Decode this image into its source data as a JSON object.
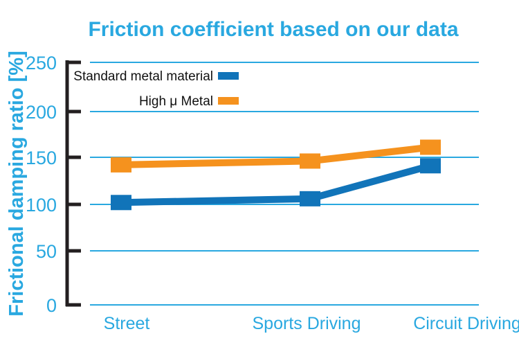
{
  "chart_data": {
    "type": "line",
    "title": "Friction coefficient based on our data",
    "ylabel": "Frictional damping ratio [%]",
    "xlabel": "",
    "ylim": [
      0,
      250
    ],
    "yticks": [
      "0",
      "50",
      "100",
      "150",
      "200",
      "250"
    ],
    "categories": [
      "Street",
      "Sports Driving",
      "Circuit Driving"
    ],
    "series": [
      {
        "name": "Standard metal material",
        "color": "#1174b9",
        "values": [
          102,
          106,
          141
        ]
      },
      {
        "name": "High μ Metal",
        "color": "#f5921e",
        "values": [
          142,
          146,
          161
        ]
      }
    ],
    "grid": true,
    "legend": "top-left"
  }
}
